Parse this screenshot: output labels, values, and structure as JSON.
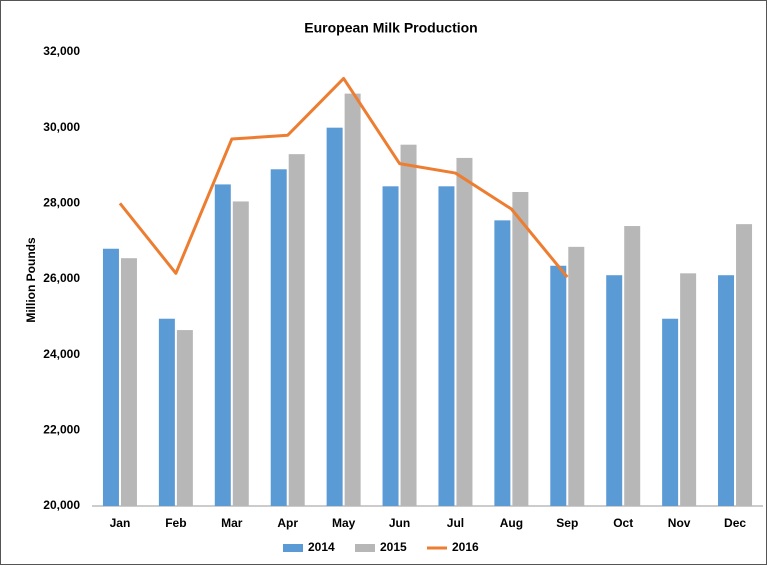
{
  "chart_data": {
    "type": "bar",
    "title": "European Milk Production",
    "y_label": "Million Pounds",
    "categories": [
      "Jan",
      "Feb",
      "Mar",
      "Apr",
      "May",
      "Jun",
      "Jul",
      "Aug",
      "Sep",
      "Oct",
      "Nov",
      "Dec"
    ],
    "series": [
      {
        "name": "2014",
        "color": "#5b9bd5",
        "type": "bar",
        "values": [
          26800,
          24950,
          28500,
          28900,
          30000,
          28450,
          28450,
          27550,
          26350,
          26100,
          24950,
          26100
        ]
      },
      {
        "name": "2015",
        "color": "#b7b7b7",
        "type": "bar",
        "values": [
          26550,
          24650,
          28050,
          29300,
          30900,
          29550,
          29200,
          28300,
          26850,
          27400,
          26150,
          27450
        ]
      },
      {
        "name": "2016",
        "color": "#ed7d31",
        "type": "line",
        "values": [
          28000,
          26150,
          29700,
          29800,
          31300,
          29050,
          28800,
          27850,
          26050,
          null,
          null,
          null
        ]
      }
    ],
    "ylim": [
      20000,
      32000
    ],
    "yticks": [
      {
        "value": 20000,
        "label": "20,000"
      },
      {
        "value": 22000,
        "label": "22,000"
      },
      {
        "value": 24000,
        "label": "24,000"
      },
      {
        "value": 26000,
        "label": "26,000"
      },
      {
        "value": 28000,
        "label": "28,000"
      },
      {
        "value": 30000,
        "label": "30,000"
      },
      {
        "value": 32000,
        "label": "32,000"
      }
    ],
    "grid": false,
    "legend": "bottom"
  }
}
